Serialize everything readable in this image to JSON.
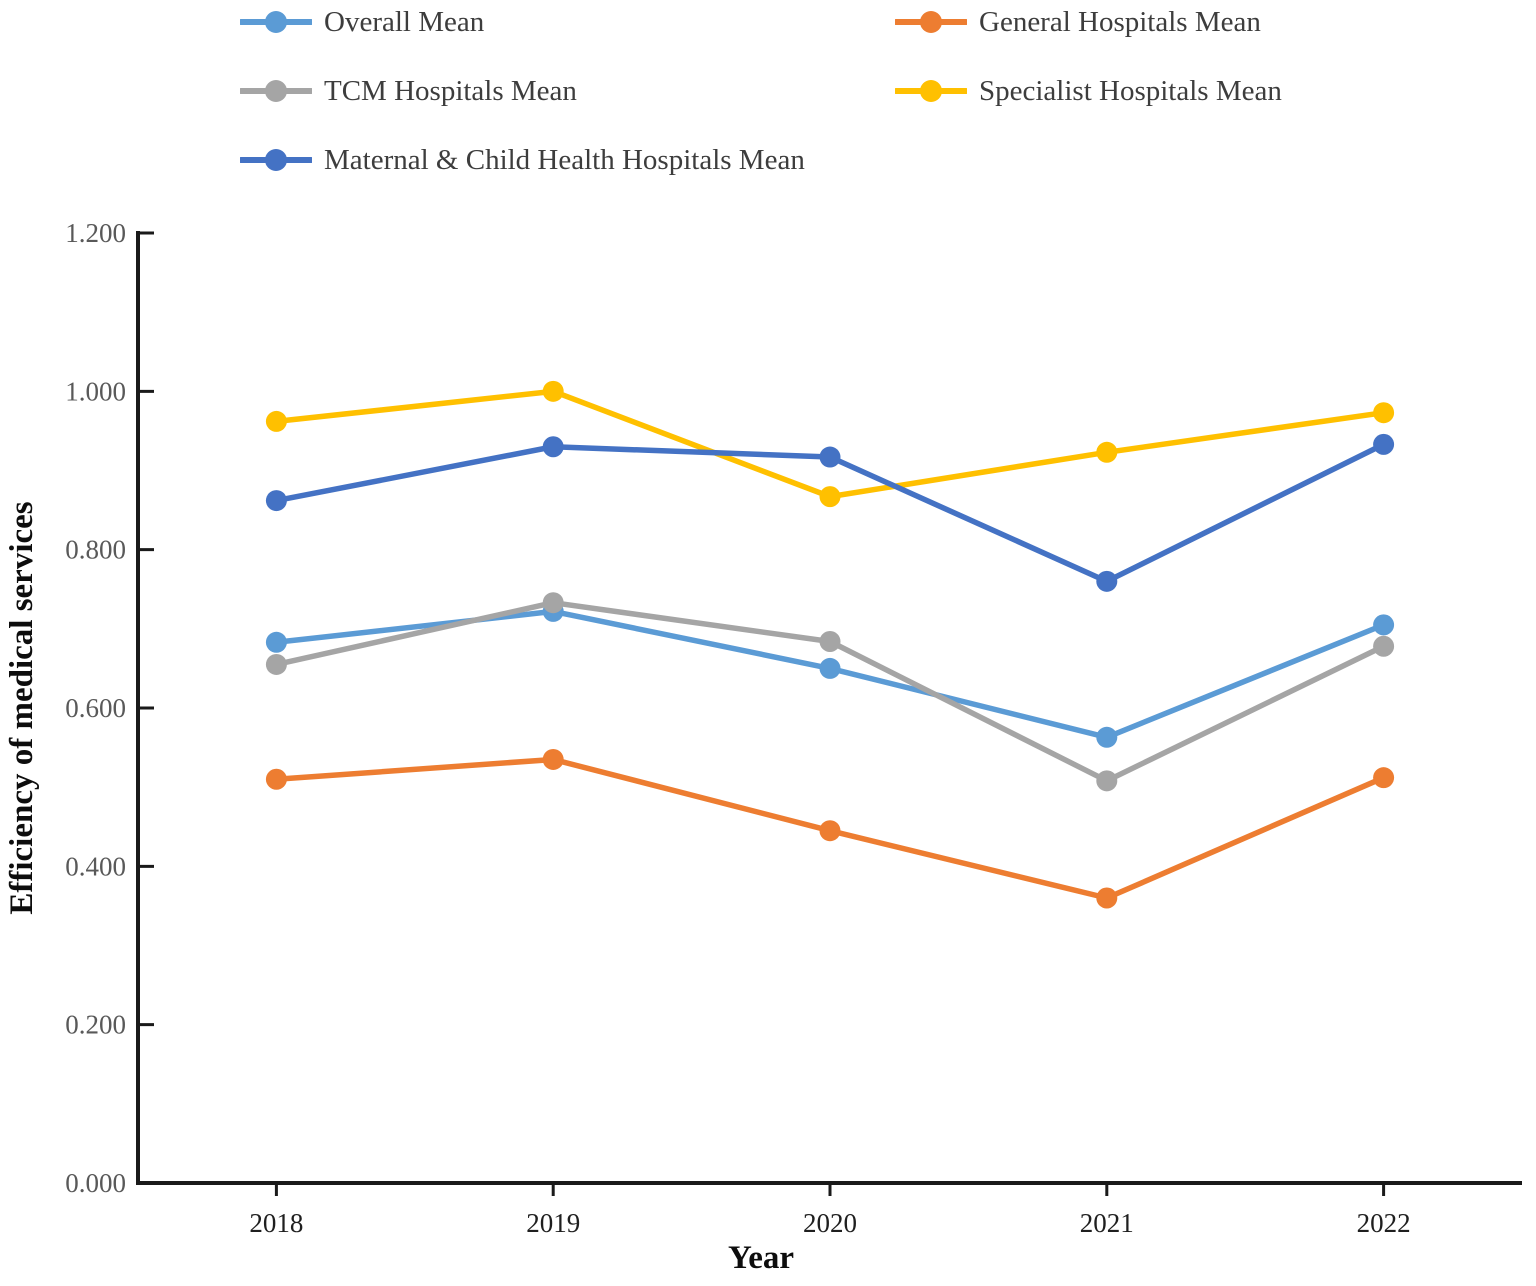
{
  "chart_data": {
    "type": "line",
    "title": "",
    "xlabel": "Year",
    "ylabel": "Efficiency of medical services",
    "categories": [
      "2018",
      "2019",
      "2020",
      "2021",
      "2022"
    ],
    "series": [
      {
        "name": "Overall Mean",
        "color": "#5B9BD5",
        "values": [
          0.683,
          0.722,
          0.65,
          0.563,
          0.705
        ]
      },
      {
        "name": "General Hospitals Mean",
        "color": "#ED7D31",
        "values": [
          0.51,
          0.535,
          0.445,
          0.36,
          0.512
        ]
      },
      {
        "name": "TCM Hospitals Mean",
        "color": "#A5A5A5",
        "values": [
          0.655,
          0.733,
          0.684,
          0.508,
          0.678
        ]
      },
      {
        "name": "Specialist Hospitals Mean",
        "color": "#FFC000",
        "values": [
          0.962,
          1.0,
          0.867,
          0.923,
          0.973
        ]
      },
      {
        "name": "Maternal & Child Health Hospitals Mean",
        "color": "#4472C4",
        "values": [
          0.862,
          0.93,
          0.917,
          0.76,
          0.933
        ]
      }
    ],
    "y_axis": {
      "min": 0.0,
      "max": 1.2,
      "step": 0.2,
      "tick_labels": [
        "0.000",
        "0.200",
        "0.400",
        "0.600",
        "0.800",
        "1.000",
        "1.200"
      ]
    },
    "x_axis": {
      "tick_labels": [
        "2018",
        "2019",
        "2020",
        "2021",
        "2022"
      ]
    },
    "legend_position": "top",
    "grid": false,
    "marker": "circle"
  },
  "styles": {
    "axis_color": "#1a1a1a",
    "y_tick_label_color": "#595959",
    "x_tick_label_color": "#1f1f1f",
    "legend_text_color": "#3d3d3d"
  }
}
